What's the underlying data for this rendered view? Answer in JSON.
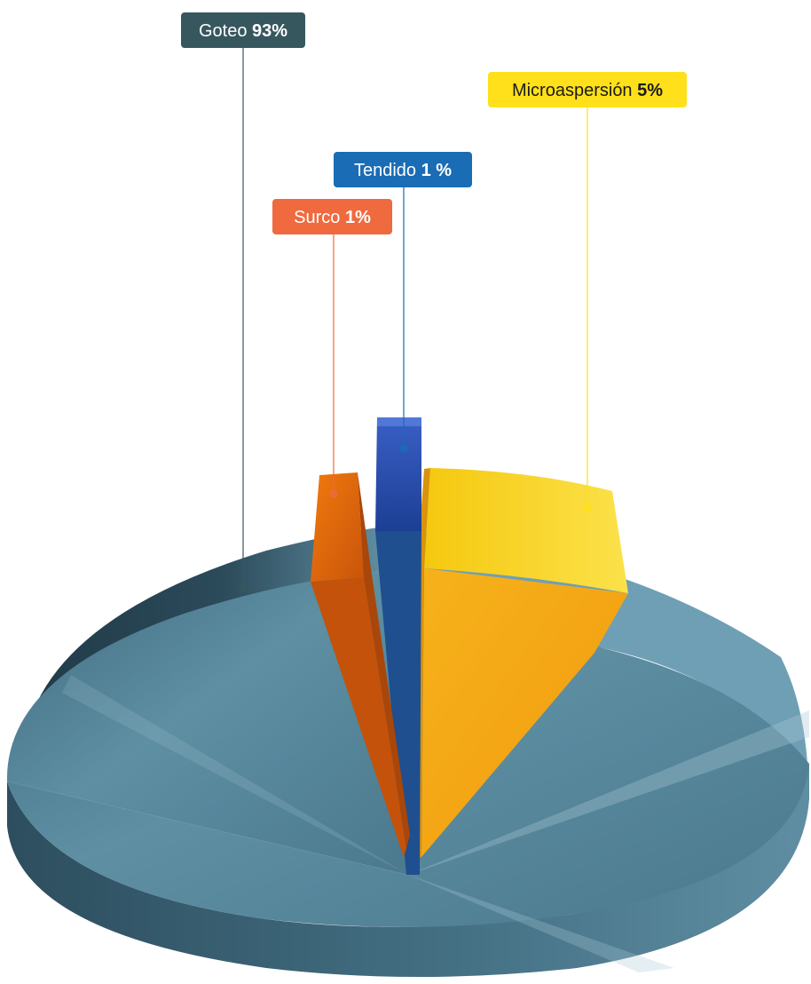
{
  "chart_data": {
    "type": "pie",
    "title": "",
    "slices": [
      {
        "name": "Goteo",
        "value": 93,
        "label": "Goteo",
        "value_label": "93%",
        "color": "#2e5566",
        "label_bg": "#37575f",
        "text_color": "#ffffff"
      },
      {
        "name": "Surco",
        "value": 1,
        "label": "Surco",
        "value_label": "1%",
        "color": "#e8700a",
        "label_bg": "#ef6a3e",
        "text_color": "#ffffff"
      },
      {
        "name": "Tendido",
        "value": 1,
        "label": "Tendido",
        "value_label": "1 %",
        "color": "#2a4fb4",
        "label_bg": "#1a6cb4",
        "text_color": "#ffffff"
      },
      {
        "name": "Microaspersión",
        "value": 5,
        "label": "Microaspersión",
        "value_label": "5%",
        "color": "#f5b614",
        "label_bg": "#ffe01a",
        "text_color": "#1a1a1a"
      }
    ],
    "style": "3d-exploded",
    "legend": "callout-labels"
  }
}
